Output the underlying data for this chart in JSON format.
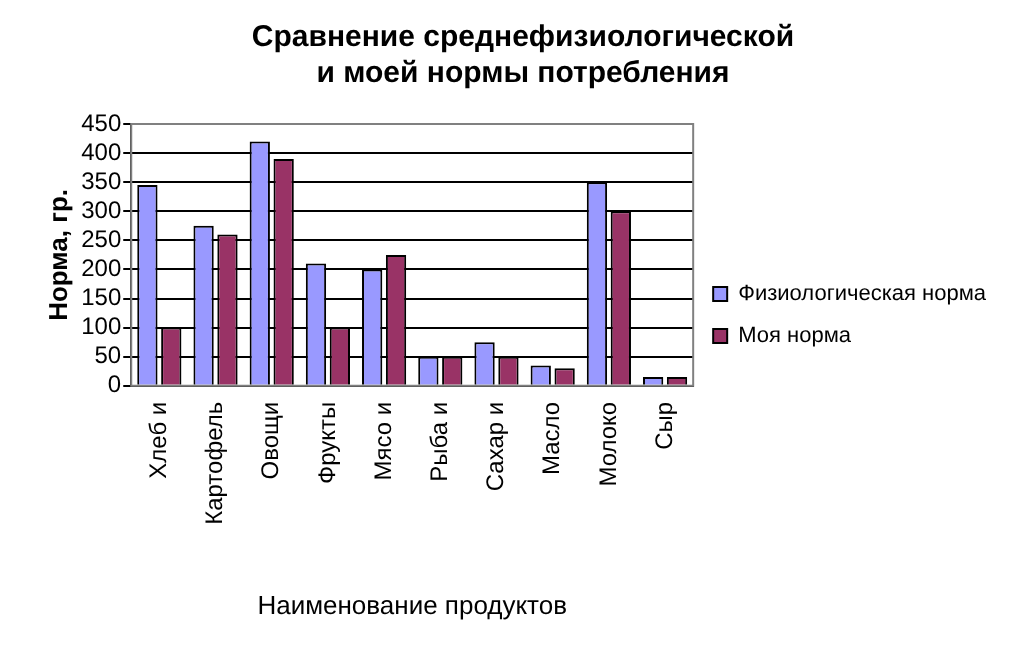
{
  "chart_data": {
    "type": "bar",
    "title": "Сравнение среднефизиологической и моей нормы потребления",
    "xlabel": "Наименование продуктов",
    "ylabel": "Норма, гр.",
    "categories": [
      "Хлеб и",
      "Картофель",
      "Овощи",
      "Фрукты",
      "Мясо и",
      "Рыба и",
      "Сахар и",
      "Масло",
      "Молоко",
      "Сыр"
    ],
    "series": [
      {
        "name": "Физиологическая норма",
        "color": "#9999ff",
        "values": [
          345,
          275,
          420,
          210,
          200,
          50,
          75,
          35,
          350,
          15
        ]
      },
      {
        "name": "Моя норма",
        "color": "#993366",
        "values": [
          100,
          260,
          390,
          100,
          225,
          50,
          50,
          30,
          300,
          15
        ]
      }
    ],
    "ylim": [
      0,
      450
    ],
    "yticks": [
      0,
      50,
      100,
      150,
      200,
      250,
      300,
      350,
      400,
      450
    ],
    "grid": "y",
    "legend": "right"
  }
}
